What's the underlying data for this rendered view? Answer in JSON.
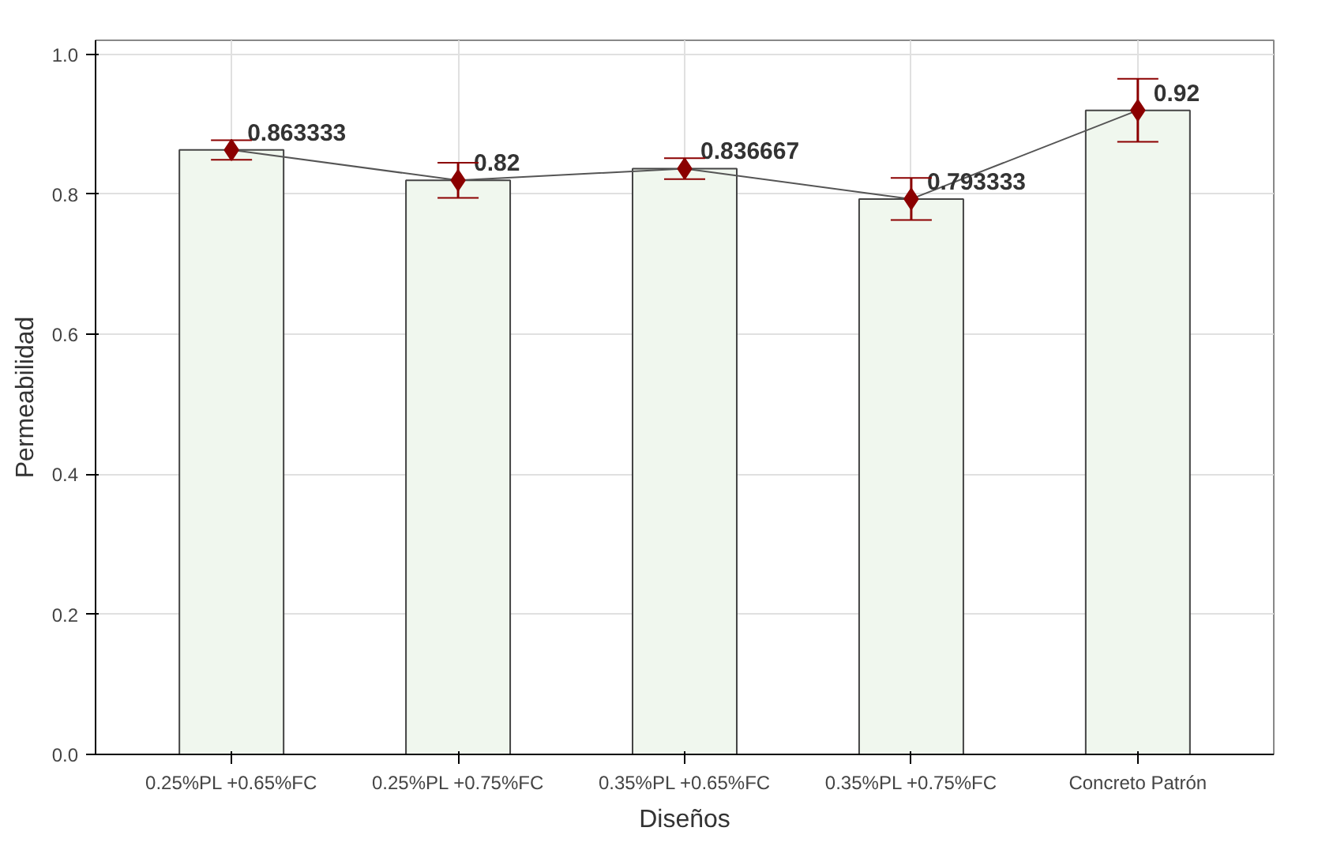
{
  "chart_data": {
    "type": "bar",
    "xlabel": "Diseños",
    "ylabel": "Permeabilidad",
    "categories": [
      "0.25%PL +0.65%FC",
      "0.25%PL +0.75%FC",
      "0.35%PL +0.65%FC",
      "0.35%PL +0.75%FC",
      "Concreto Patrón"
    ],
    "series": [
      {
        "color": "#f0f7ee",
        "values": [
          0.863333,
          0.82,
          0.836667,
          0.793333,
          0.92
        ]
      },
      {
        "type": "line",
        "color": "#8b0000",
        "marker": "diamond",
        "values": [
          0.863333,
          0.82,
          0.836667,
          0.793333,
          0.92
        ],
        "errors": [
          0.014,
          0.025,
          0.015,
          0.03,
          0.045
        ],
        "value_labels": [
          "0.863333",
          "0.82",
          "0.836667",
          "0.793333",
          "0.92"
        ]
      }
    ],
    "ylim": [
      0,
      1.02
    ],
    "yticks": [
      {
        "value": 0,
        "label": "0.0"
      },
      0.2,
      0.4,
      0.6,
      0.8,
      {
        "value": 1,
        "label": "1.0"
      }
    ],
    "grid": true
  }
}
